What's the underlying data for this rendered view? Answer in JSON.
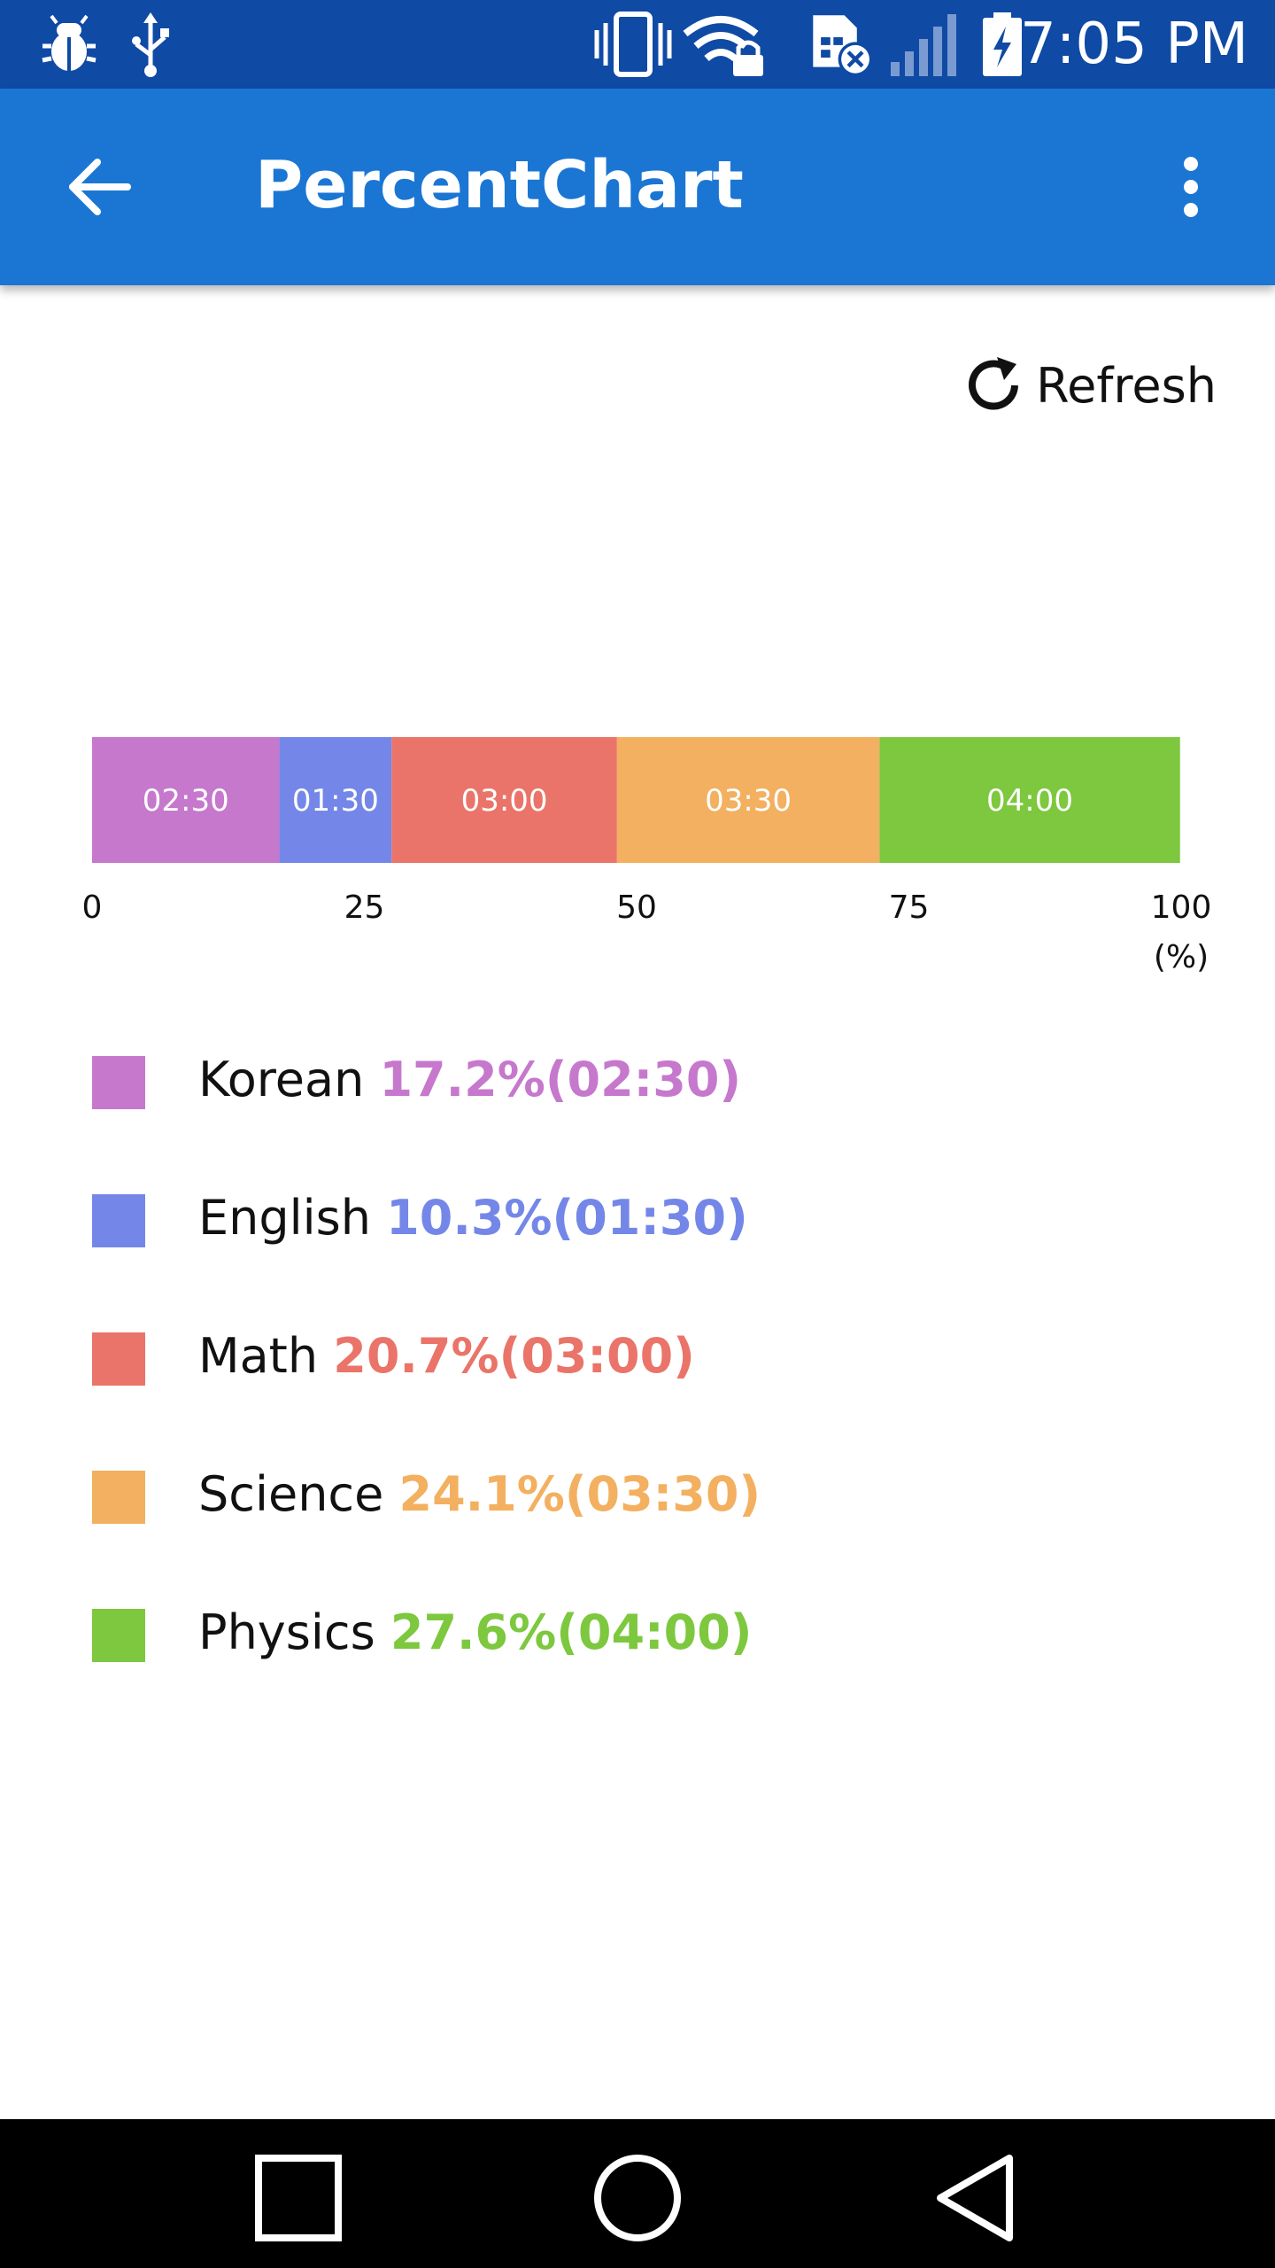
{
  "status_bar": {
    "time": "7:05 PM",
    "icons": [
      "debug-bug-icon",
      "usb-icon",
      "vibrate-icon",
      "wifi-lock-icon",
      "sim-error-icon",
      "signal-icon",
      "battery-charging-icon"
    ]
  },
  "app_bar": {
    "title": "PercentChart",
    "back_icon": "arrow-back-icon",
    "menu_icon": "more-vert-icon"
  },
  "refresh": {
    "label": "Refresh",
    "icon": "refresh-icon"
  },
  "chart_data": {
    "type": "bar",
    "orientation": "horizontal-stacked",
    "categories": [
      "Korean",
      "English",
      "Math",
      "Science",
      "Physics"
    ],
    "values": [
      17.2,
      10.3,
      20.7,
      24.1,
      27.6
    ],
    "segment_labels": [
      "02:30",
      "01:30",
      "03:00",
      "03:30",
      "04:00"
    ],
    "colors": [
      "#c678cd",
      "#7487e8",
      "#ea7469",
      "#f3b060",
      "#7dc83e"
    ],
    "xticks": [
      "0",
      "25",
      "50",
      "75",
      "100"
    ],
    "xunit": "(%)",
    "xlim": [
      0,
      100
    ]
  },
  "legend": [
    {
      "name": "Korean",
      "value": "17.2%(02:30)",
      "color": "#c678cd"
    },
    {
      "name": "English",
      "value": "10.3%(01:30)",
      "color": "#7487e8"
    },
    {
      "name": "Math",
      "value": "20.7%(03:00)",
      "color": "#ea7469"
    },
    {
      "name": "Science",
      "value": "24.1%(03:30)",
      "color": "#f3b060"
    },
    {
      "name": "Physics",
      "value": "27.6%(04:00)",
      "color": "#7dc83e"
    }
  ],
  "nav_bar": {
    "recents_icon": "recents-square-icon",
    "home_icon": "home-circle-icon",
    "back_icon": "back-triangle-icon"
  }
}
